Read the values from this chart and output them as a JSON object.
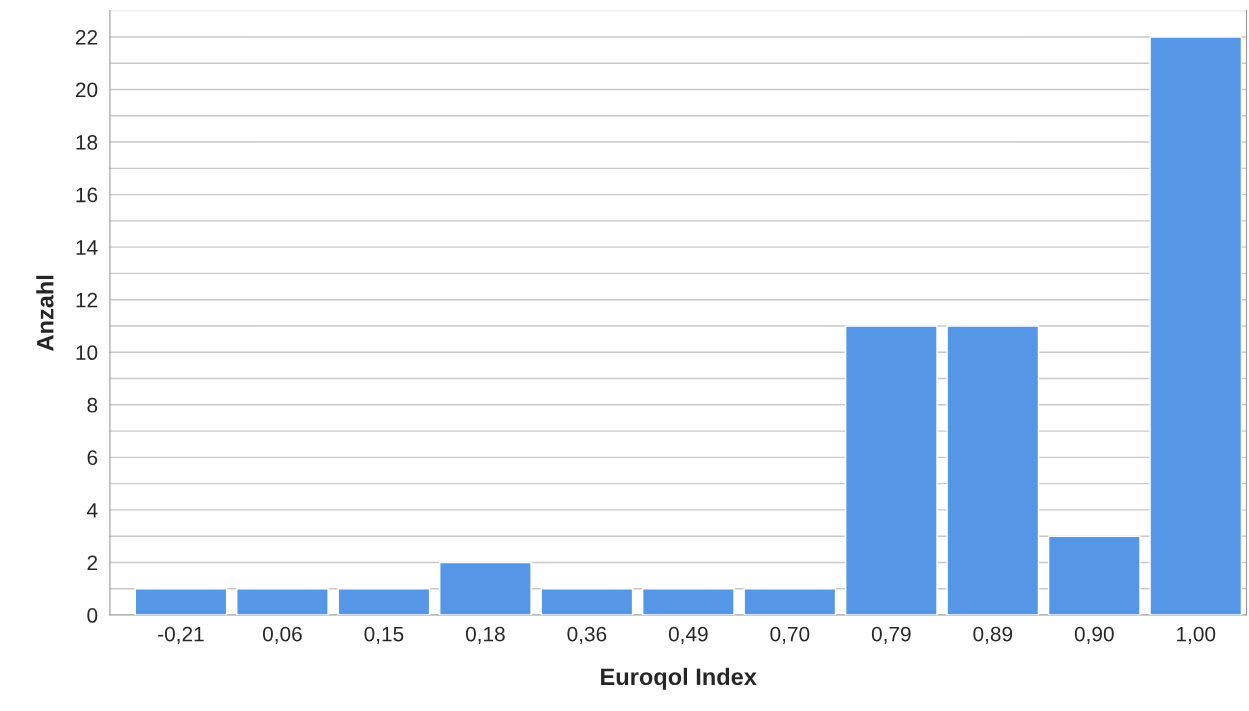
{
  "chart_data": {
    "type": "bar",
    "xlabel": "Euroqol Index",
    "ylabel": "Anzahl",
    "categories": [
      "-0,21",
      "0,06",
      "0,15",
      "0,18",
      "0,36",
      "0,49",
      "0,70",
      "0,79",
      "0,89",
      "0,90",
      "1,00"
    ],
    "values": [
      1,
      1,
      1,
      2,
      1,
      1,
      1,
      11,
      11,
      3,
      22
    ],
    "color": "#5596e6",
    "ylim": [
      0,
      23
    ],
    "yticks": [
      0,
      {
        "value": 1,
        "label": null
      },
      2,
      {
        "value": 3,
        "label": null
      },
      4,
      {
        "value": 5,
        "label": null
      },
      6,
      {
        "value": 7,
        "label": null
      },
      8,
      {
        "value": 9,
        "label": null
      },
      10,
      {
        "value": 11,
        "label": null
      },
      12,
      {
        "value": 13,
        "label": null
      },
      14,
      {
        "value": 15,
        "label": null
      },
      16,
      {
        "value": 17,
        "label": null
      },
      18,
      {
        "value": 19,
        "label": null
      },
      20,
      {
        "value": 21,
        "label": null
      },
      22,
      {
        "value": 23,
        "label": null
      }
    ],
    "grid": "y"
  }
}
